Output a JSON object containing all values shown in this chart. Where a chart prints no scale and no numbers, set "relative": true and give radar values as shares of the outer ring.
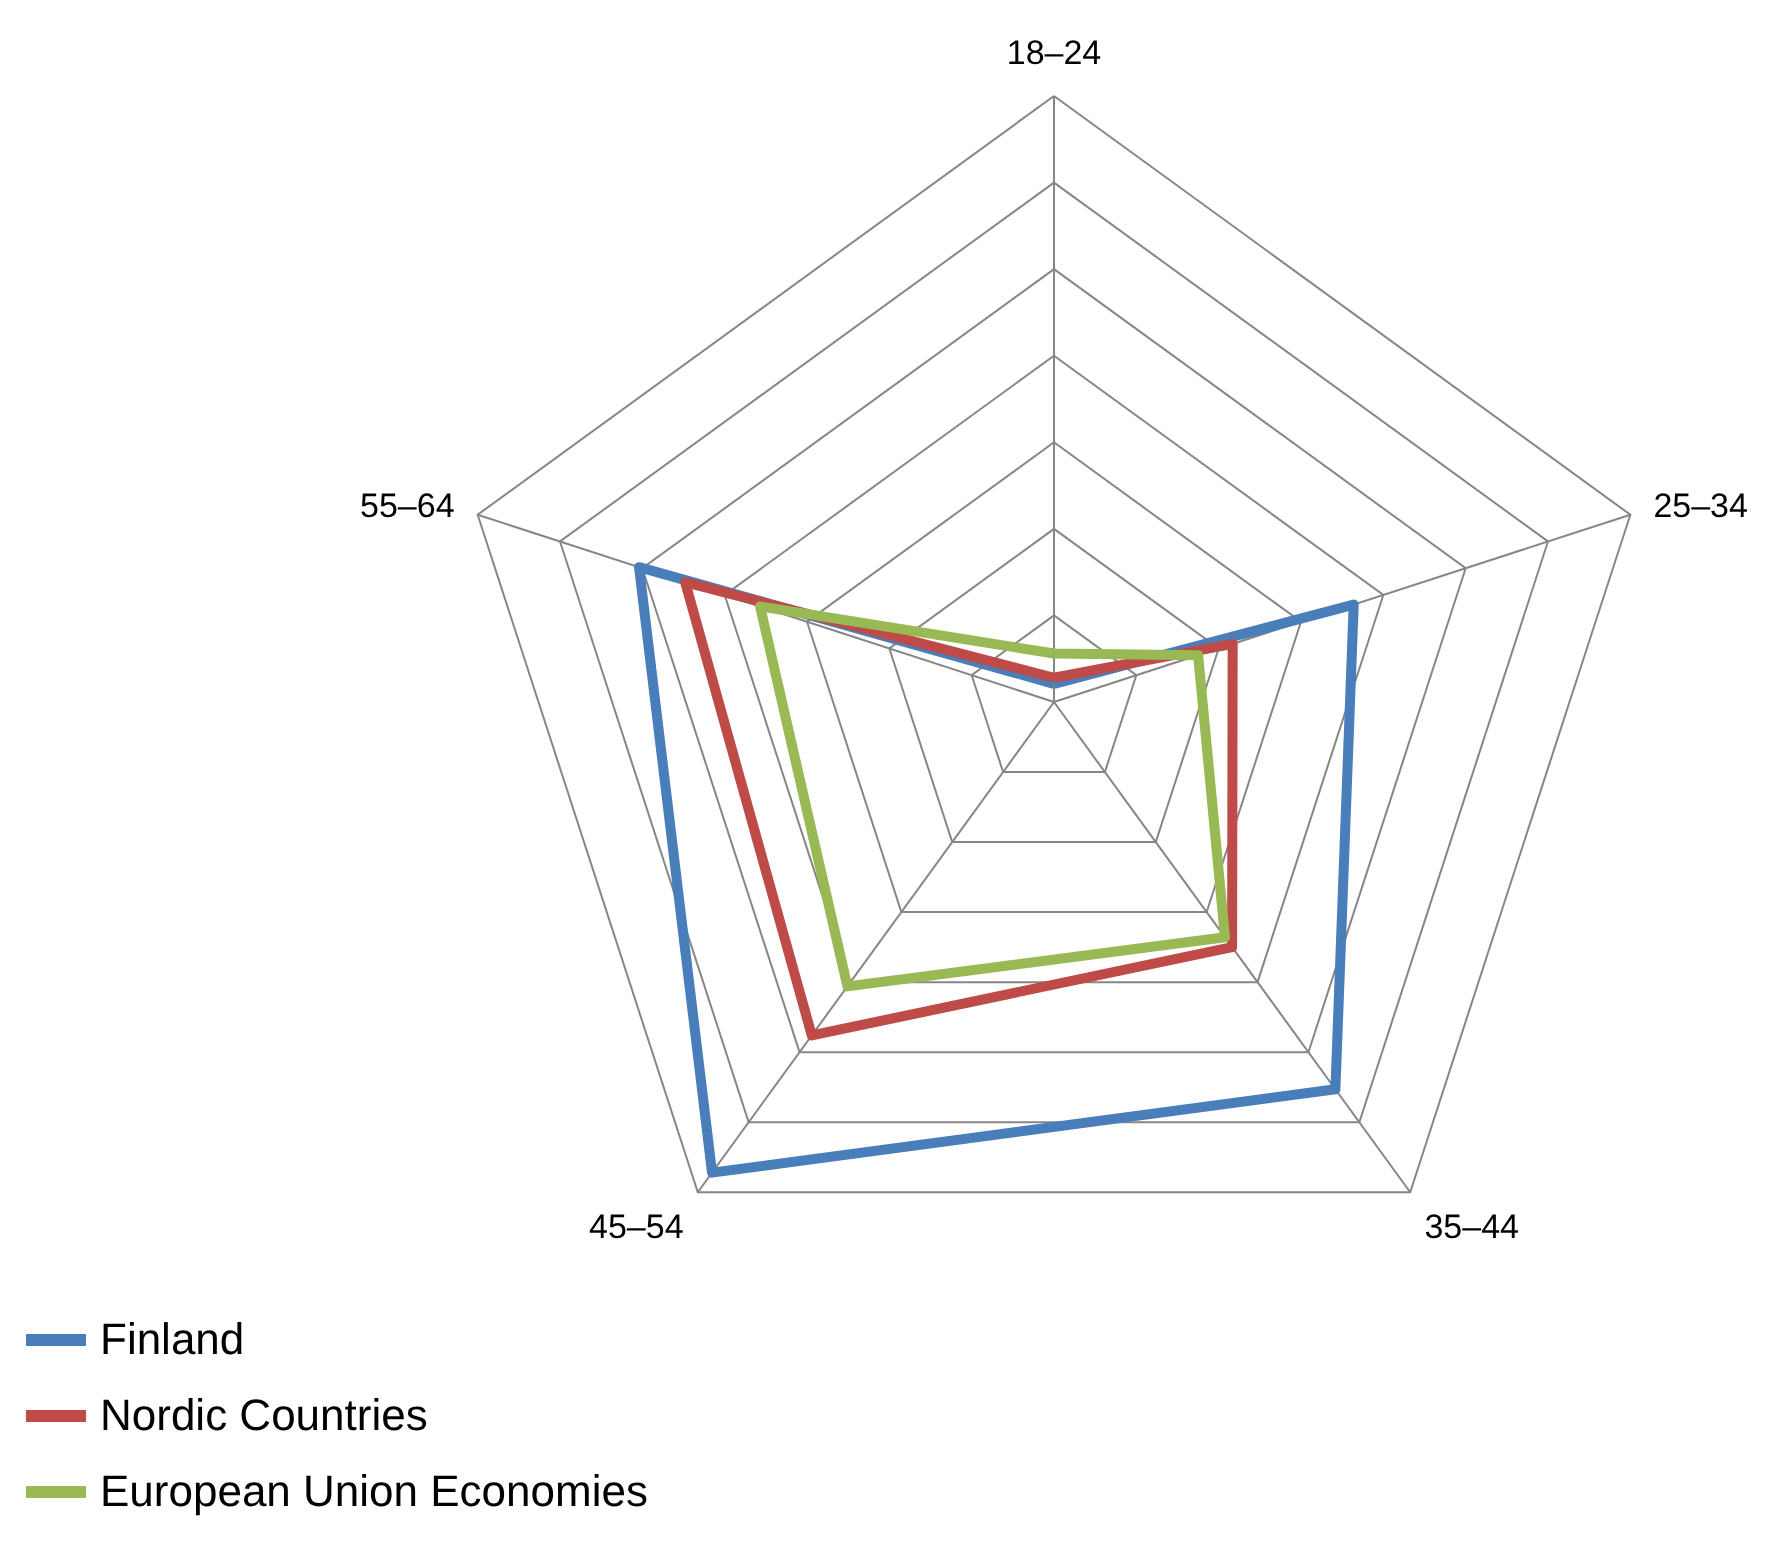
{
  "chart_data": {
    "type": "radar",
    "relative": true,
    "categories": [
      "18–24",
      "25–34",
      "35–44",
      "45–54",
      "55–64"
    ],
    "series": [
      {
        "name": "Finland",
        "color": "#4a7ebb",
        "values": [
          0.03,
          0.52,
          0.79,
          0.96,
          0.72
        ]
      },
      {
        "name": "Nordic Countries",
        "color": "#be4b48",
        "values": [
          0.04,
          0.31,
          0.5,
          0.68,
          0.64
        ]
      },
      {
        "name": "European Union Economies",
        "color": "#98b954",
        "values": [
          0.08,
          0.25,
          0.48,
          0.58,
          0.51
        ]
      }
    ],
    "grid": true,
    "legend": "bottom left"
  }
}
